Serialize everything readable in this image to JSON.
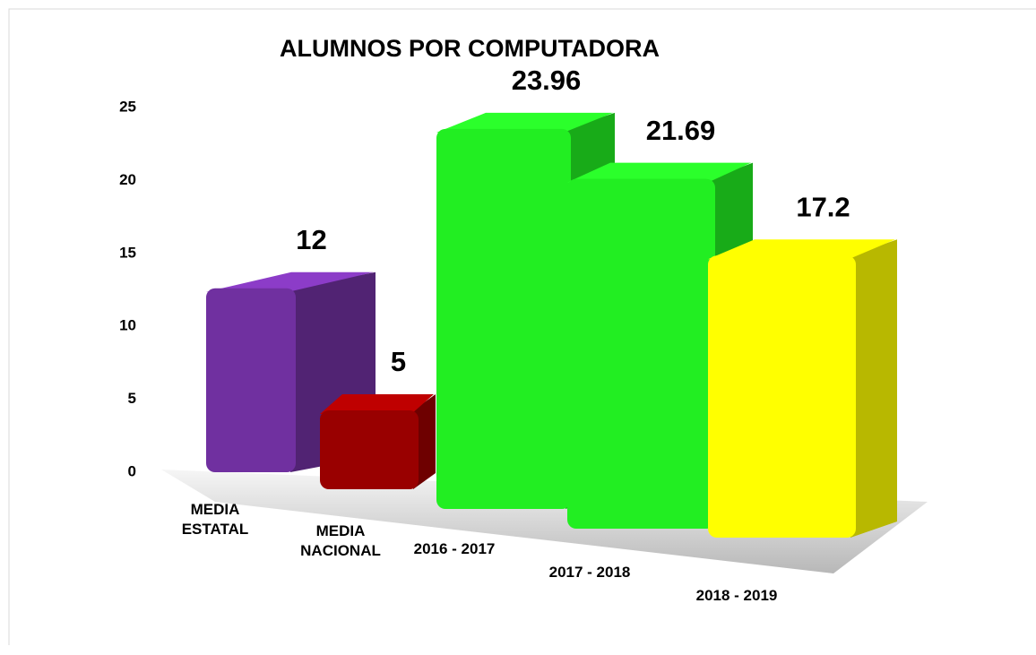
{
  "chart_data": {
    "type": "bar3d",
    "title": "ALUMNOS POR COMPUTADORA",
    "categories": [
      "MEDIA\nESTATAL",
      "MEDIA\nNACIONAL",
      "2016 - 2017",
      "2017 - 2018",
      "2018 - 2019"
    ],
    "values": [
      12,
      5,
      23.96,
      21.69,
      17.2
    ],
    "colors": [
      "#7030a0",
      "#990000",
      "#22ee22",
      "#22ee22",
      "#ffff00"
    ],
    "ylim": [
      0,
      25
    ],
    "yticks": [
      0,
      5,
      10,
      15,
      20,
      25
    ],
    "grid": false
  }
}
